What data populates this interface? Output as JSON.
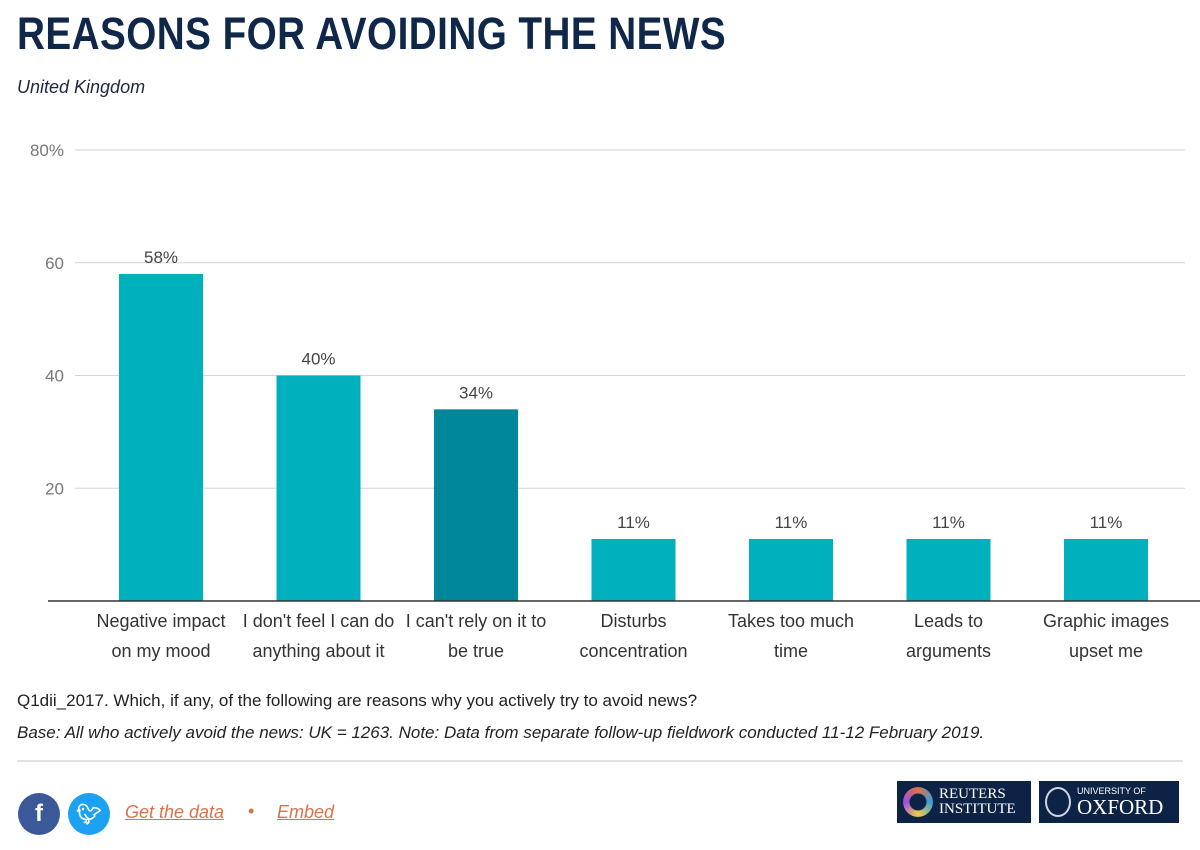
{
  "title": "REASONS FOR AVOIDING THE NEWS",
  "subtitle": "United Kingdom",
  "chart_data": {
    "type": "bar",
    "categories": [
      [
        "Negative impact",
        "on my mood"
      ],
      [
        "I don't feel I can do",
        "anything about it"
      ],
      [
        "I can't rely on it to",
        "be true"
      ],
      [
        "Disturbs",
        "concentration"
      ],
      [
        "Takes too much",
        "time"
      ],
      [
        "Leads to",
        "arguments"
      ],
      [
        "Graphic images",
        "upset me"
      ]
    ],
    "values": [
      58,
      40,
      34,
      11,
      11,
      11,
      11
    ],
    "data_labels": [
      "58%",
      "40%",
      "34%",
      "11%",
      "11%",
      "11%",
      "11%"
    ],
    "highlighted_index": 2,
    "ylim": [
      0,
      80
    ],
    "yticks": [
      20,
      40,
      60,
      80
    ],
    "ytick_labels": [
      "20",
      "40",
      "60",
      "80%"
    ],
    "grid": true,
    "colors": {
      "bar": "#00b0bd",
      "highlight": "#00879a"
    }
  },
  "notes": {
    "question": "Q1dii_2017. Which, if any, of the following are reasons why you actively try to avoid news?",
    "base": "Base: All who actively avoid the news: UK = 1263. Note: Data from separate follow-up fieldwork conducted 11-12 February 2019."
  },
  "footer": {
    "facebook_icon": "f",
    "twitter_icon": "t",
    "get_data": "Get the data",
    "separator": "•",
    "embed": "Embed",
    "reuters_logo": [
      "REUTERS",
      "INSTITUTE"
    ],
    "oxford_logo": [
      "UNIVERSITY OF",
      "OXFORD"
    ]
  }
}
